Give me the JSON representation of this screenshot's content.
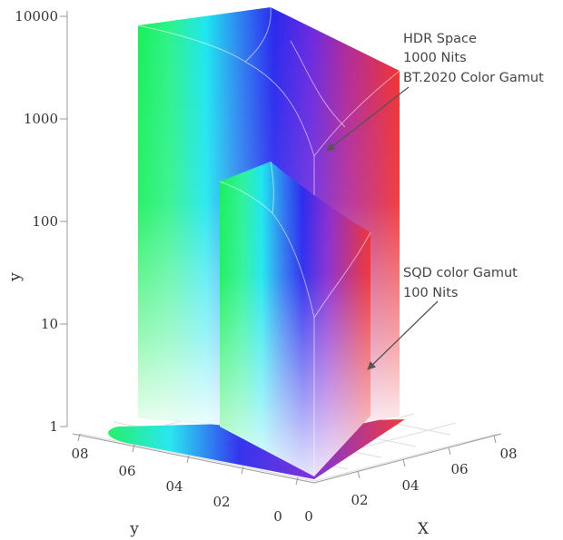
{
  "diagram": {
    "vertical_axis": {
      "label": "y",
      "ticks": [
        "10000",
        "1000",
        "100",
        "10",
        "1"
      ]
    },
    "floor_axis_left": {
      "label": "y",
      "ticks": [
        "08",
        "06",
        "04",
        "02",
        "0"
      ]
    },
    "floor_axis_right": {
      "label": "X",
      "ticks": [
        "0",
        "02",
        "04",
        "06",
        "08"
      ]
    },
    "annotations": {
      "hdr": {
        "lines": [
          "HDR Space",
          "1000 Nits",
          "BT.2020 Color Gamut"
        ]
      },
      "sqd": {
        "lines": [
          "SQD color Gamut",
          "100 Nits"
        ]
      }
    },
    "colors": {
      "green": "#19f05a",
      "cyan": "#1ee6f0",
      "blue": "#2a2aee",
      "violet": "#7a2ad6",
      "red": "#f03030",
      "axis": "#9a9a9a",
      "grid": "#dedede",
      "text": "#333333",
      "arrow": "#555555"
    }
  }
}
